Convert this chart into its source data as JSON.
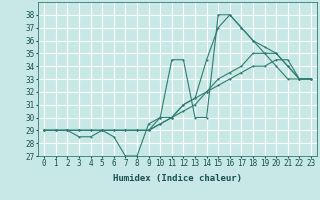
{
  "xlabel": "Humidex (Indice chaleur)",
  "bg_color": "#c8e8e8",
  "grid_color": "#ffffff",
  "line_color": "#2e7d6e",
  "ylim": [
    27,
    39
  ],
  "xlim": [
    -0.5,
    23.5
  ],
  "yticks": [
    27,
    28,
    29,
    30,
    31,
    32,
    33,
    34,
    35,
    36,
    37,
    38
  ],
  "xticks": [
    0,
    1,
    2,
    3,
    4,
    5,
    6,
    7,
    8,
    9,
    10,
    11,
    12,
    13,
    14,
    15,
    16,
    17,
    18,
    19,
    20,
    21,
    22,
    23
  ],
  "series": [
    {
      "x": [
        0,
        1,
        2,
        3,
        4,
        5,
        6,
        7,
        8,
        9,
        10,
        11,
        12,
        13,
        14,
        15,
        16,
        17,
        18,
        19,
        20,
        21,
        22,
        23
      ],
      "y": [
        29,
        29,
        29,
        28.5,
        28.5,
        29,
        28.5,
        27,
        27,
        29.5,
        30,
        34.5,
        34.5,
        30,
        30,
        38,
        38,
        37,
        36,
        35,
        34,
        33,
        33,
        33
      ]
    },
    {
      "x": [
        0,
        1,
        2,
        3,
        4,
        5,
        6,
        7,
        8,
        9,
        10,
        11,
        12,
        13,
        14,
        15,
        16,
        17,
        18,
        19,
        20,
        21,
        22,
        23
      ],
      "y": [
        29,
        29,
        29,
        29,
        29,
        29,
        29,
        29,
        29,
        29,
        29.5,
        30,
        30.5,
        31,
        32,
        32.5,
        33,
        33.5,
        34,
        34,
        34.5,
        34.5,
        33,
        33
      ]
    },
    {
      "x": [
        0,
        1,
        2,
        3,
        4,
        5,
        6,
        7,
        8,
        9,
        10,
        11,
        12,
        13,
        14,
        15,
        16,
        17,
        18,
        19,
        20,
        21,
        22,
        23
      ],
      "y": [
        29,
        29,
        29,
        29,
        29,
        29,
        29,
        29,
        29,
        29,
        29.5,
        30,
        31,
        31.5,
        32,
        33,
        33.5,
        34,
        35,
        35,
        35,
        34,
        33,
        33
      ]
    },
    {
      "x": [
        0,
        1,
        2,
        3,
        4,
        5,
        6,
        7,
        8,
        9,
        10,
        11,
        12,
        13,
        14,
        15,
        16,
        17,
        18,
        19,
        20,
        21,
        22,
        23
      ],
      "y": [
        29,
        29,
        29,
        29,
        29,
        29,
        29,
        29,
        29,
        29,
        30,
        30,
        31,
        31.5,
        34.5,
        37,
        38,
        37,
        36,
        35.5,
        35,
        34,
        33,
        33
      ]
    }
  ]
}
